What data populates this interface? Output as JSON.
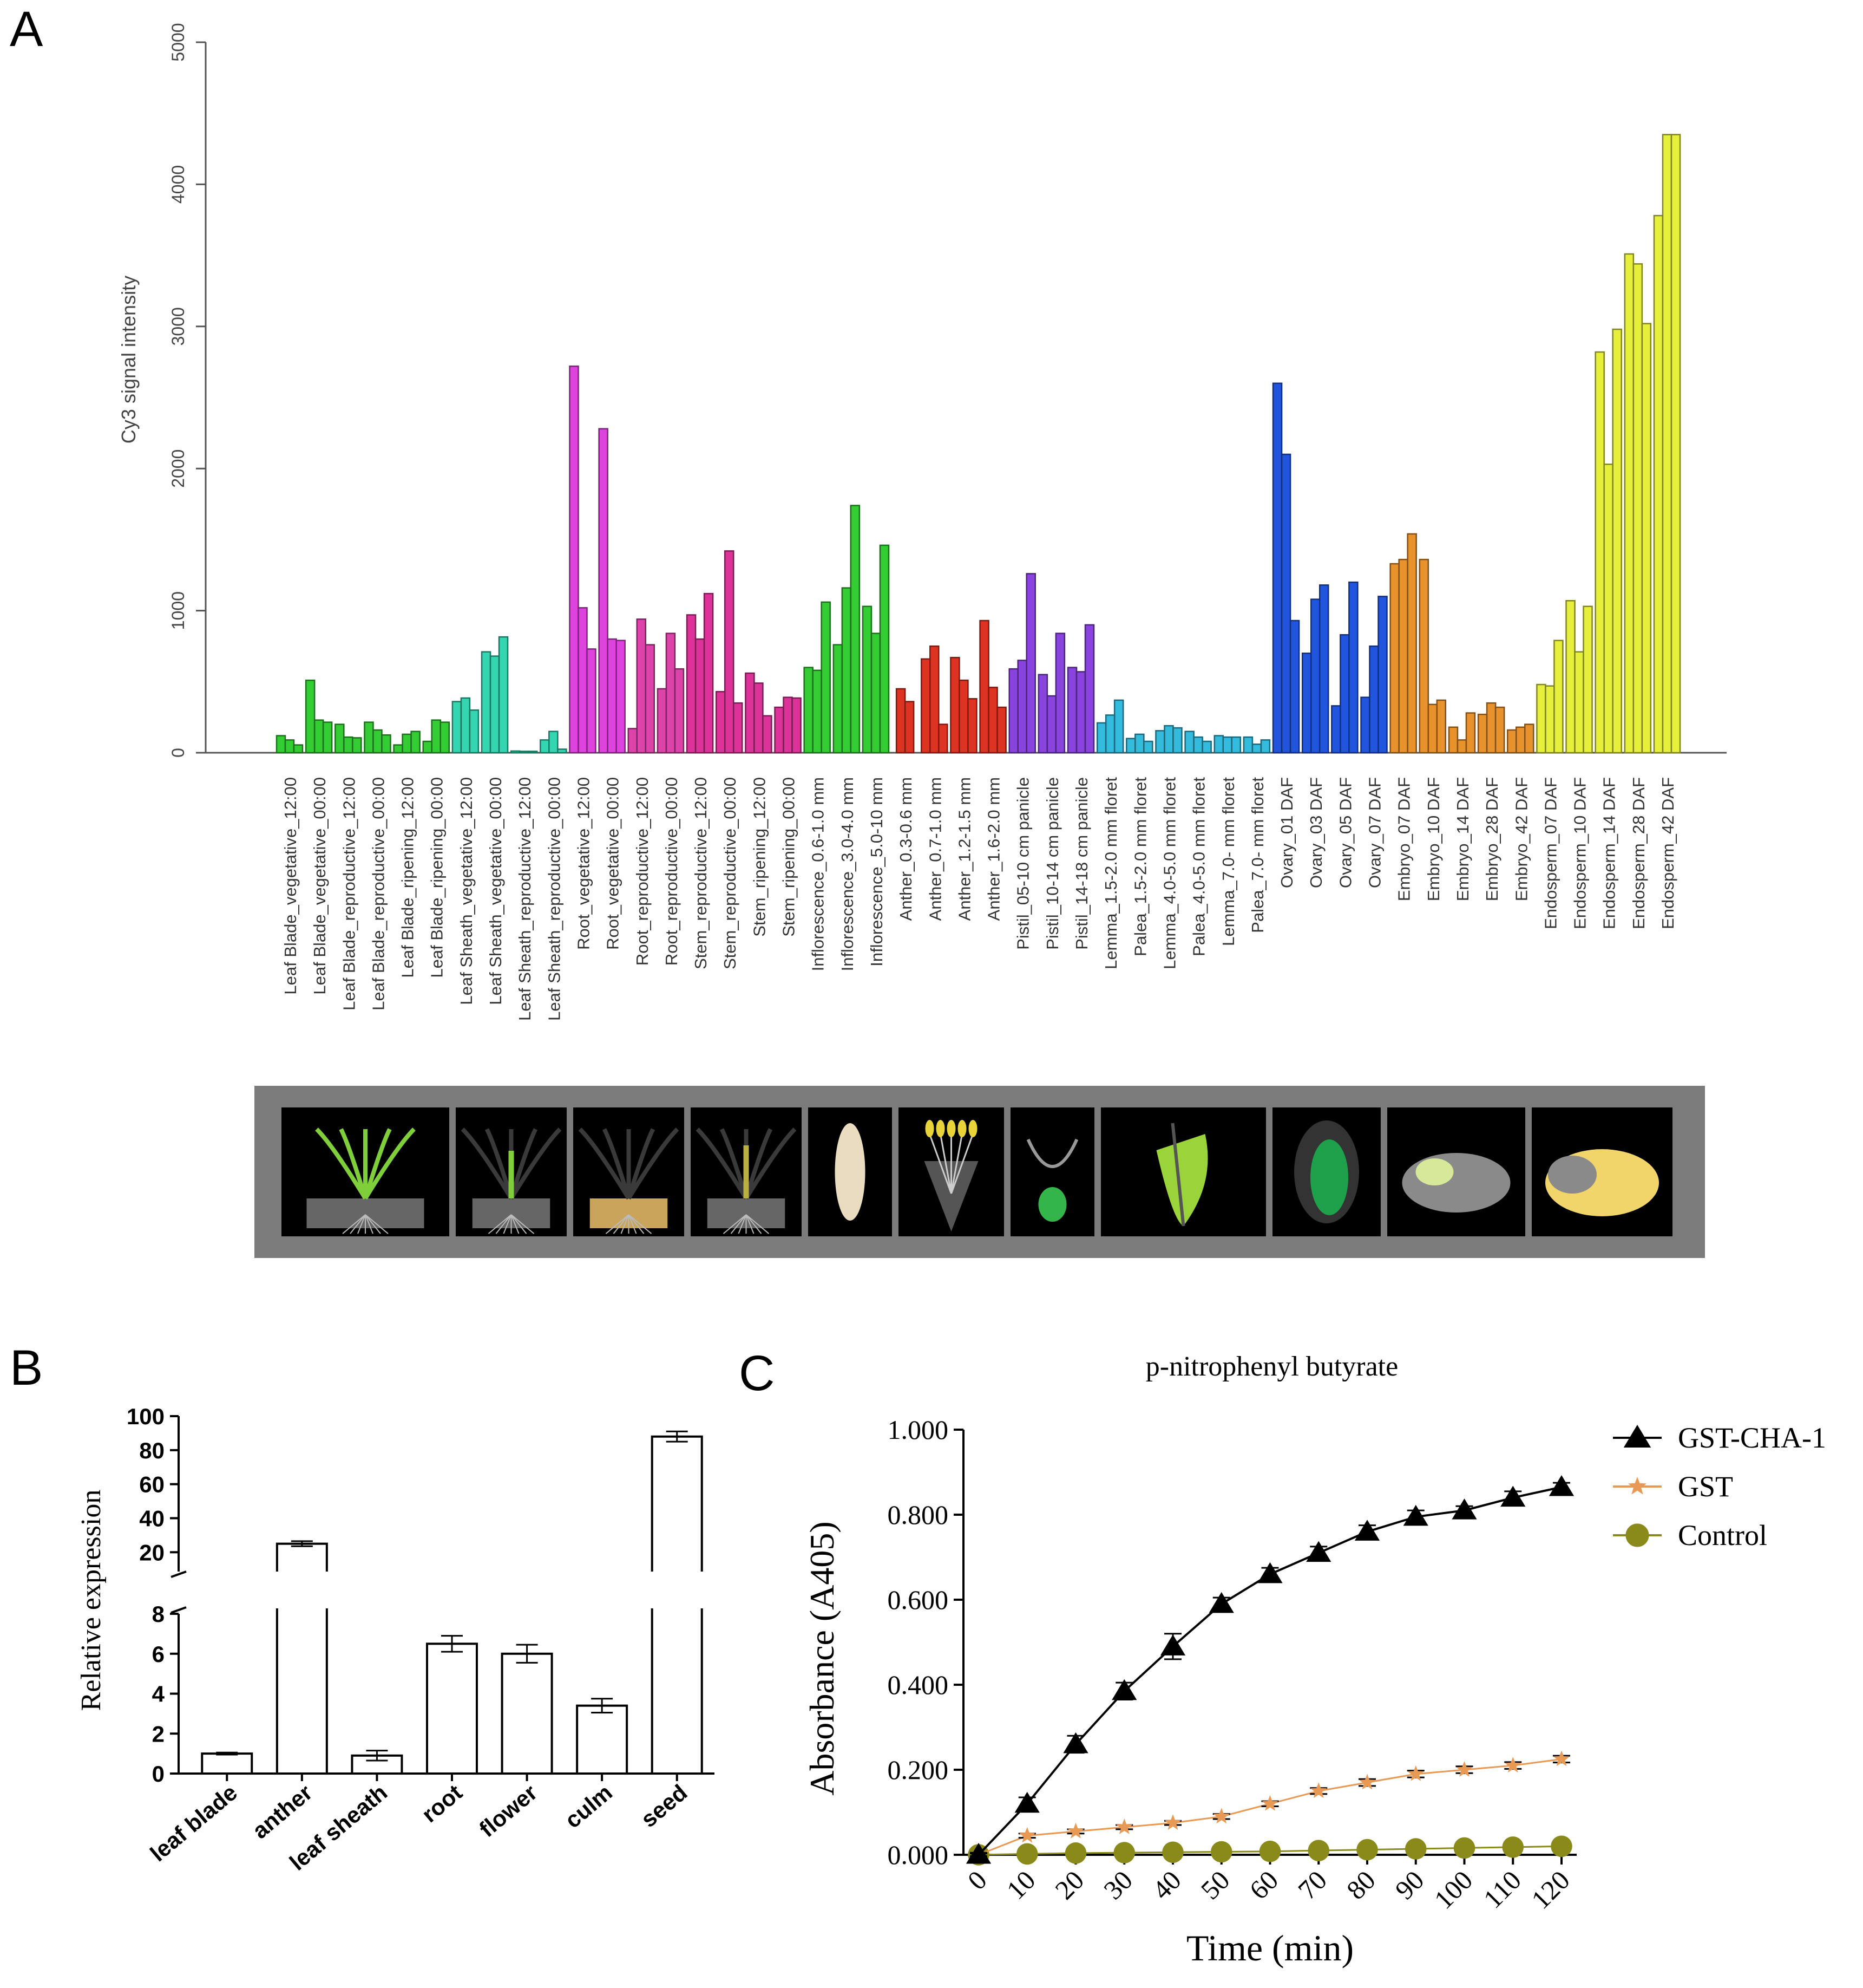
{
  "panels": {
    "a": "A",
    "b": "B",
    "c": "C"
  },
  "chart_data": [
    {
      "type": "bar",
      "panel": "A",
      "ylabel": "Cy3 signal intensity",
      "ylim": [
        0,
        5000
      ],
      "yticks": [
        0,
        1000,
        2000,
        3000,
        4000,
        5000
      ],
      "groups": [
        {
          "label": "Leaf Blade_vegetative_12:00",
          "color": "#33cc33",
          "values": [
            120,
            90,
            55
          ]
        },
        {
          "label": "Leaf Blade_vegetative_00:00",
          "color": "#33cc33",
          "values": [
            510,
            230,
            215
          ]
        },
        {
          "label": "Leaf Blade_reproductive_12:00",
          "color": "#33cc33",
          "values": [
            200,
            110,
            105
          ]
        },
        {
          "label": "Leaf Blade_reproductive_00:00",
          "color": "#33cc33",
          "values": [
            215,
            160,
            125
          ]
        },
        {
          "label": "Leaf Blade_ripening_12:00",
          "color": "#33cc33",
          "values": [
            55,
            130,
            150
          ]
        },
        {
          "label": "Leaf Blade_ripening_00:00",
          "color": "#33cc33",
          "values": [
            80,
            230,
            215
          ]
        },
        {
          "label": "Leaf Sheath_vegetative_12:00",
          "color": "#33d6b0",
          "values": [
            360,
            385,
            300
          ]
        },
        {
          "label": "Leaf Sheath_vegetative_00:00",
          "color": "#33d6b0",
          "values": [
            710,
            680,
            815
          ]
        },
        {
          "label": "Leaf Sheath_reproductive_12:00",
          "color": "#33d6b0",
          "values": [
            12,
            10,
            10
          ]
        },
        {
          "label": "Leaf Sheath_reproductive_00:00",
          "color": "#33d6b0",
          "values": [
            90,
            150,
            25
          ]
        },
        {
          "label": "Root_vegetative_12:00",
          "color": "#dd44dd",
          "values": [
            2720,
            1020,
            730
          ]
        },
        {
          "label": "Root_vegetative_00:00",
          "color": "#dd44dd",
          "values": [
            2280,
            800,
            790
          ]
        },
        {
          "label": "Root_reproductive_12:00",
          "color": "#dd44aa",
          "values": [
            170,
            940,
            760
          ]
        },
        {
          "label": "Root_reproductive_00:00",
          "color": "#dd44aa",
          "values": [
            450,
            840,
            590
          ]
        },
        {
          "label": "Stem_reproductive_12:00",
          "color": "#dd3399",
          "values": [
            970,
            800,
            1120
          ]
        },
        {
          "label": "Stem_reproductive_00:00",
          "color": "#dd3399",
          "values": [
            430,
            1420,
            350
          ]
        },
        {
          "label": "Stem_ripening_12:00",
          "color": "#dd3399",
          "values": [
            560,
            490,
            260
          ]
        },
        {
          "label": "Stem_ripening_00:00",
          "color": "#dd3399",
          "values": [
            320,
            390,
            385
          ]
        },
        {
          "label": "Inflorescence_0.6-1.0 mm",
          "color": "#33cc33",
          "values": [
            600,
            580,
            1060
          ]
        },
        {
          "label": "Inflorescence_3.0-4.0 mm",
          "color": "#33cc33",
          "values": [
            760,
            1160,
            1740
          ]
        },
        {
          "label": "Inflorescence_5.0-10 mm",
          "color": "#33cc33",
          "values": [
            1030,
            840,
            1460
          ]
        },
        {
          "label": "Anther_0.3-0.6 mm",
          "color": "#dd3322",
          "values": [
            450,
            360
          ]
        },
        {
          "label": "Anther_0.7-1.0 mm",
          "color": "#dd3322",
          "values": [
            660,
            750,
            200
          ]
        },
        {
          "label": "Anther_1.2-1.5 mm",
          "color": "#dd3322",
          "values": [
            670,
            510,
            380
          ]
        },
        {
          "label": "Anther_1.6-2.0 mm",
          "color": "#dd3322",
          "values": [
            930,
            460,
            320
          ]
        },
        {
          "label": "Pistil_05-10 cm panicle",
          "color": "#8844dd",
          "values": [
            590,
            650,
            1260
          ]
        },
        {
          "label": "Pistil_10-14 cm panicle",
          "color": "#8844dd",
          "values": [
            550,
            400,
            840
          ]
        },
        {
          "label": "Pistil_14-18 cm panicle",
          "color": "#8844dd",
          "values": [
            600,
            570,
            900
          ]
        },
        {
          "label": "Lemma_1.5-2.0 mm floret",
          "color": "#33bbdd",
          "values": [
            210,
            265,
            370
          ]
        },
        {
          "label": "Palea_1.5-2.0 mm floret",
          "color": "#33bbdd",
          "values": [
            100,
            130,
            80
          ]
        },
        {
          "label": "Lemma_4.0-5.0 mm floret",
          "color": "#33bbdd",
          "values": [
            155,
            190,
            175
          ]
        },
        {
          "label": "Palea_4.0-5.0 mm floret",
          "color": "#33bbdd",
          "values": [
            150,
            110,
            80
          ]
        },
        {
          "label": "Lemma_7.0- mm floret",
          "color": "#33bbdd",
          "values": [
            120,
            110,
            110
          ]
        },
        {
          "label": "Palea_7.0- mm floret",
          "color": "#33bbdd",
          "values": [
            110,
            60,
            90
          ]
        },
        {
          "label": "Ovary_01 DAF",
          "color": "#2255dd",
          "values": [
            2600,
            2100,
            930
          ]
        },
        {
          "label": "Ovary_03 DAF",
          "color": "#2255dd",
          "values": [
            700,
            1080,
            1180
          ]
        },
        {
          "label": "Ovary_05 DAF",
          "color": "#2255dd",
          "values": [
            330,
            830,
            1200
          ]
        },
        {
          "label": "Ovary_07 DAF",
          "color": "#2255dd",
          "values": [
            390,
            750,
            1100
          ]
        },
        {
          "label": "Embryo_07 DAF",
          "color": "#e8922e",
          "values": [
            1330,
            1360,
            1540
          ]
        },
        {
          "label": "Embryo_10 DAF",
          "color": "#e8922e",
          "values": [
            1360,
            340,
            370
          ]
        },
        {
          "label": "Embryo_14 DAF",
          "color": "#e8922e",
          "values": [
            180,
            90,
            280
          ]
        },
        {
          "label": "Embryo_28 DAF",
          "color": "#e8922e",
          "values": [
            270,
            350,
            320
          ]
        },
        {
          "label": "Embryo_42 DAF",
          "color": "#e8922e",
          "values": [
            160,
            180,
            200
          ]
        },
        {
          "label": "Endosperm_07 DAF",
          "color": "#e6f03a",
          "values": [
            480,
            470,
            790
          ]
        },
        {
          "label": "Endosperm_10 DAF",
          "color": "#e6f03a",
          "values": [
            1070,
            710,
            1030
          ]
        },
        {
          "label": "Endosperm_14 DAF",
          "color": "#e6f03a",
          "values": [
            2820,
            2030,
            2980
          ]
        },
        {
          "label": "Endosperm_28 DAF",
          "color": "#e6f03a",
          "values": [
            3510,
            3440,
            3020
          ]
        },
        {
          "label": "Endosperm_42 DAF",
          "color": "#e6f03a",
          "values": [
            3780,
            4350,
            4350
          ]
        }
      ]
    },
    {
      "type": "bar",
      "panel": "B",
      "ylabel": "Relative expression",
      "categories": [
        "leaf blade",
        "anther",
        "leaf sheath",
        "root",
        "flower",
        "culm",
        "seed"
      ],
      "values": [
        1.0,
        25.0,
        0.9,
        6.5,
        6.0,
        3.4,
        88.0
      ],
      "errors": [
        0.05,
        1.5,
        0.25,
        0.4,
        0.45,
        0.35,
        3.0
      ],
      "broken_axis": true,
      "lower_range": [
        0,
        8
      ],
      "lower_ticks": [
        0,
        2,
        4,
        6,
        8
      ],
      "upper_range": [
        15,
        100
      ],
      "upper_ticks": [
        20,
        40,
        60,
        80,
        100
      ]
    },
    {
      "type": "line",
      "panel": "C",
      "title": "p-nitrophenyl butyrate",
      "xlabel": "Time (min)",
      "ylabel": "Absorbance (A405)",
      "x": [
        0,
        10,
        20,
        30,
        40,
        50,
        60,
        70,
        80,
        90,
        100,
        110,
        120
      ],
      "xlim": [
        0,
        120
      ],
      "ylim": [
        0,
        1.0
      ],
      "yticks": [
        "0.000",
        "0.200",
        "0.400",
        "0.600",
        "0.800",
        "1.000"
      ],
      "series": [
        {
          "name": "GST-CHA-1",
          "color": "#000000",
          "marker": "triangle",
          "values": [
            0.0,
            0.12,
            0.26,
            0.385,
            0.49,
            0.59,
            0.66,
            0.71,
            0.76,
            0.795,
            0.81,
            0.84,
            0.865
          ],
          "errors": [
            0.005,
            0.015,
            0.02,
            0.02,
            0.03,
            0.015,
            0.015,
            0.015,
            0.015,
            0.015,
            0.01,
            0.015,
            0.01
          ]
        },
        {
          "name": "GST",
          "color": "#e89a55",
          "marker": "star",
          "values": [
            0.0,
            0.045,
            0.055,
            0.065,
            0.075,
            0.09,
            0.12,
            0.15,
            0.17,
            0.19,
            0.2,
            0.21,
            0.225
          ],
          "errors": [
            0.003,
            0.005,
            0.005,
            0.005,
            0.005,
            0.006,
            0.006,
            0.007,
            0.008,
            0.008,
            0.008,
            0.008,
            0.008
          ]
        },
        {
          "name": "Control",
          "color": "#8a8a1a",
          "marker": "circle",
          "values": [
            0.0,
            0.002,
            0.004,
            0.005,
            0.006,
            0.007,
            0.008,
            0.01,
            0.012,
            0.014,
            0.016,
            0.018,
            0.02
          ],
          "errors": [
            0.002,
            0.002,
            0.002,
            0.002,
            0.002,
            0.002,
            0.002,
            0.002,
            0.002,
            0.002,
            0.002,
            0.002,
            0.002
          ]
        }
      ]
    }
  ],
  "illustration_strip": {
    "icons": [
      "seedling-icon",
      "leaf-sheath-icon",
      "root-icon",
      "stem-icon",
      "inflorescence-icon",
      "anther-icon",
      "pistil-icon",
      "lemma-palea-icon",
      "ovary-icon",
      "embryo-icon",
      "endosperm-icon"
    ]
  }
}
